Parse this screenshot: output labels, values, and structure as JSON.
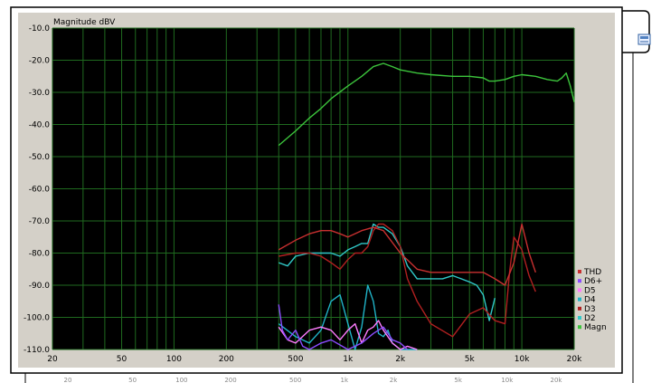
{
  "window": {
    "export_icon": "document-save-icon"
  },
  "chart_data": {
    "type": "line",
    "ylabel": "Magnitude dBV",
    "xscale": "log",
    "xlim": [
      20,
      20000
    ],
    "ylim": [
      -110,
      -10
    ],
    "grid": true,
    "legend_position": "bottom-right",
    "y_ticks": [
      "-10.0",
      "-20.0",
      "-30.0",
      "-40.0",
      "-50.0",
      "-60.0",
      "-70.0",
      "-80.0",
      "-90.0",
      "-100.0",
      "-110.0"
    ],
    "x_ticks": [
      {
        "v": 20,
        "label": "20"
      },
      {
        "v": 50,
        "label": "50"
      },
      {
        "v": 100,
        "label": "100"
      },
      {
        "v": 200,
        "label": "200"
      },
      {
        "v": 500,
        "label": "500"
      },
      {
        "v": 1000,
        "label": "1k"
      },
      {
        "v": 2000,
        "label": "2k"
      },
      {
        "v": 5000,
        "label": "5k"
      },
      {
        "v": 10000,
        "label": "10k"
      },
      {
        "v": 20000,
        "label": "20k"
      }
    ],
    "x_ticks_faint": [
      {
        "v": 20,
        "label": "20"
      },
      {
        "v": 50,
        "label": "50"
      },
      {
        "v": 100,
        "label": "100"
      },
      {
        "v": 200,
        "label": "200"
      },
      {
        "v": 500,
        "label": "500"
      },
      {
        "v": 1000,
        "label": "1k"
      },
      {
        "v": 2000,
        "label": "2k"
      },
      {
        "v": 5000,
        "label": "5k"
      },
      {
        "v": 10000,
        "label": "10k"
      },
      {
        "v": 20000,
        "label": "20k"
      }
    ],
    "series": [
      {
        "name": "Magn",
        "color": "#3cc43c",
        "x": [
          400,
          500,
          600,
          700,
          800,
          1000,
          1200,
          1400,
          1600,
          1800,
          2000,
          2500,
          3000,
          4000,
          5000,
          6000,
          6500,
          7000,
          8000,
          9000,
          10000,
          12000,
          14000,
          16000,
          17000,
          18000,
          19000,
          20000
        ],
        "y": [
          -46.5,
          -42,
          -38,
          -35,
          -32,
          -28,
          -25,
          -22,
          -21,
          -22,
          -23,
          -24,
          -24.5,
          -25,
          -25,
          -25.5,
          -26.5,
          -26.5,
          -26,
          -25,
          -24.5,
          -25,
          -26,
          -26.5,
          -25.5,
          -24,
          -28,
          -33
        ]
      },
      {
        "name": "D2",
        "color": "#30c8c8",
        "x": [
          400,
          450,
          500,
          600,
          700,
          800,
          900,
          1000,
          1100,
          1200,
          1300,
          1400,
          1500,
          1600,
          1800,
          2000,
          2200,
          2500,
          3000,
          3500,
          4000,
          5000,
          5500,
          6000,
          6500,
          7000
        ],
        "y": [
          -83,
          -84,
          -81,
          -80,
          -80,
          -80,
          -81,
          -79,
          -78,
          -77,
          -77,
          -71,
          -72,
          -72,
          -74,
          -78,
          -84,
          -88,
          -88,
          -88,
          -87,
          -89,
          -90,
          -93,
          -101,
          -94
        ]
      },
      {
        "name": "D3",
        "color": "#b02020",
        "x": [
          400,
          500,
          600,
          700,
          800,
          900,
          1000,
          1100,
          1200,
          1300,
          1400,
          1500,
          1600,
          1800,
          2000,
          2200,
          2500,
          3000,
          4000,
          5000,
          6000,
          7000,
          8000,
          8500,
          9000,
          10000,
          11000,
          12000
        ],
        "y": [
          -81,
          -80,
          -80,
          -81,
          -83,
          -85,
          -82,
          -80,
          -80,
          -78,
          -73,
          -71,
          -71,
          -73,
          -78,
          -88,
          -95,
          -102,
          -106,
          -99,
          -97,
          -101,
          -102,
          -86,
          -75,
          -79,
          -87,
          -92
        ]
      },
      {
        "name": "THD",
        "color": "#c83030",
        "x": [
          400,
          500,
          600,
          700,
          800,
          900,
          1000,
          1200,
          1400,
          1600,
          2000,
          2500,
          3000,
          4000,
          5000,
          6000,
          7000,
          8000,
          9000,
          10000,
          11000,
          12000
        ],
        "y": [
          -79,
          -76,
          -74,
          -73,
          -73,
          -74,
          -75,
          -73,
          -72,
          -73,
          -80,
          -85,
          -86,
          -86,
          -86,
          -86,
          -88,
          -90,
          -83,
          -71,
          -80,
          -86
        ]
      },
      {
        "name": "D4",
        "color": "#20b4c8",
        "x": [
          400,
          500,
          600,
          700,
          800,
          900,
          1000,
          1100,
          1200,
          1300,
          1400,
          1500,
          1600,
          1700,
          1800,
          2000,
          2200,
          2500
        ],
        "y": [
          -102,
          -106,
          -108,
          -104,
          -95,
          -93,
          -102,
          -110,
          -103,
          -90,
          -95,
          -105,
          -106,
          -104,
          -108,
          -110,
          -110,
          -110
        ]
      },
      {
        "name": "D5",
        "color": "#ff7cff",
        "x": [
          400,
          450,
          500,
          600,
          700,
          800,
          900,
          1000,
          1100,
          1200,
          1300,
          1400,
          1500,
          1600,
          1800,
          2000,
          2200,
          2500
        ],
        "y": [
          -103,
          -107,
          -108,
          -104,
          -103,
          -104,
          -107,
          -104,
          -102,
          -108,
          -104,
          -103,
          -101,
          -104,
          -108,
          -110,
          -109,
          -110
        ]
      },
      {
        "name": "D6+",
        "color": "#8c4cff",
        "x": [
          400,
          420,
          450,
          500,
          550,
          600,
          700,
          800,
          1000,
          1200,
          1400,
          1600,
          1800,
          2000,
          2200
        ],
        "y": [
          -96,
          -104,
          -107,
          -104,
          -109,
          -110,
          -108,
          -107,
          -110,
          -108,
          -105,
          -103,
          -107,
          -108,
          -110
        ]
      }
    ]
  }
}
